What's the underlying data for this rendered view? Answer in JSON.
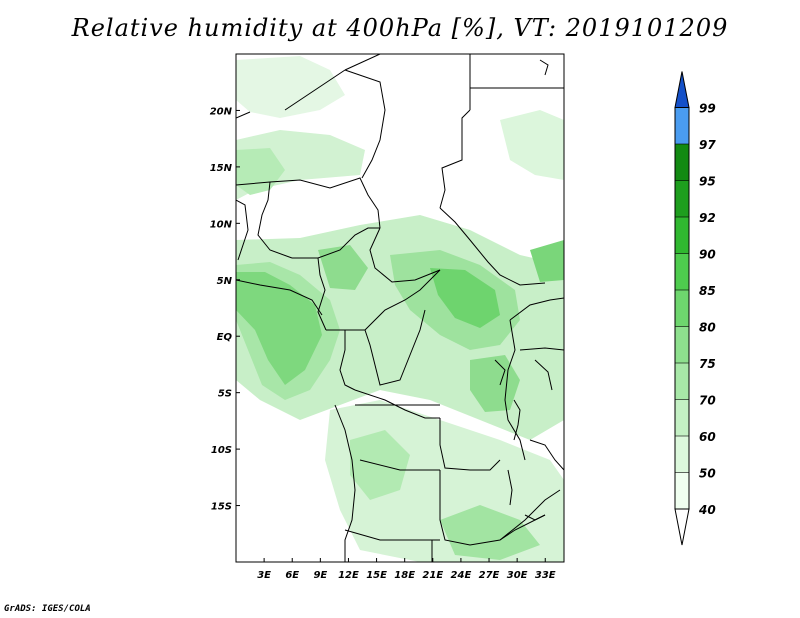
{
  "title": "Relative humidity at 400hPa [%], VT: 2019101209",
  "credit": "GrADS: IGES/COLA",
  "map": {
    "region": "Central Africa",
    "lon_range": [
      0,
      35
    ],
    "lat_range": [
      -20,
      25
    ],
    "x_tick_labels": [
      "3E",
      "6E",
      "9E",
      "12E",
      "15E",
      "18E",
      "21E",
      "24E",
      "27E",
      "30E",
      "33E"
    ],
    "y_tick_labels": [
      "20N",
      "15N",
      "10N",
      "5N",
      "EQ",
      "5S",
      "10S",
      "15S"
    ]
  },
  "colorbar": {
    "levels": [
      "40",
      "50",
      "60",
      "70",
      "75",
      "80",
      "85",
      "90",
      "92",
      "95",
      "97",
      "99"
    ],
    "colors": [
      "#f0fff0",
      "#dcf8dc",
      "#c4f0c4",
      "#a8e8a8",
      "#8ee08e",
      "#6ed66e",
      "#4ecc4e",
      "#30b830",
      "#1e9e1e",
      "#128a12",
      "#4a9cf0",
      "#2878e0",
      "#1450c8"
    ]
  }
}
